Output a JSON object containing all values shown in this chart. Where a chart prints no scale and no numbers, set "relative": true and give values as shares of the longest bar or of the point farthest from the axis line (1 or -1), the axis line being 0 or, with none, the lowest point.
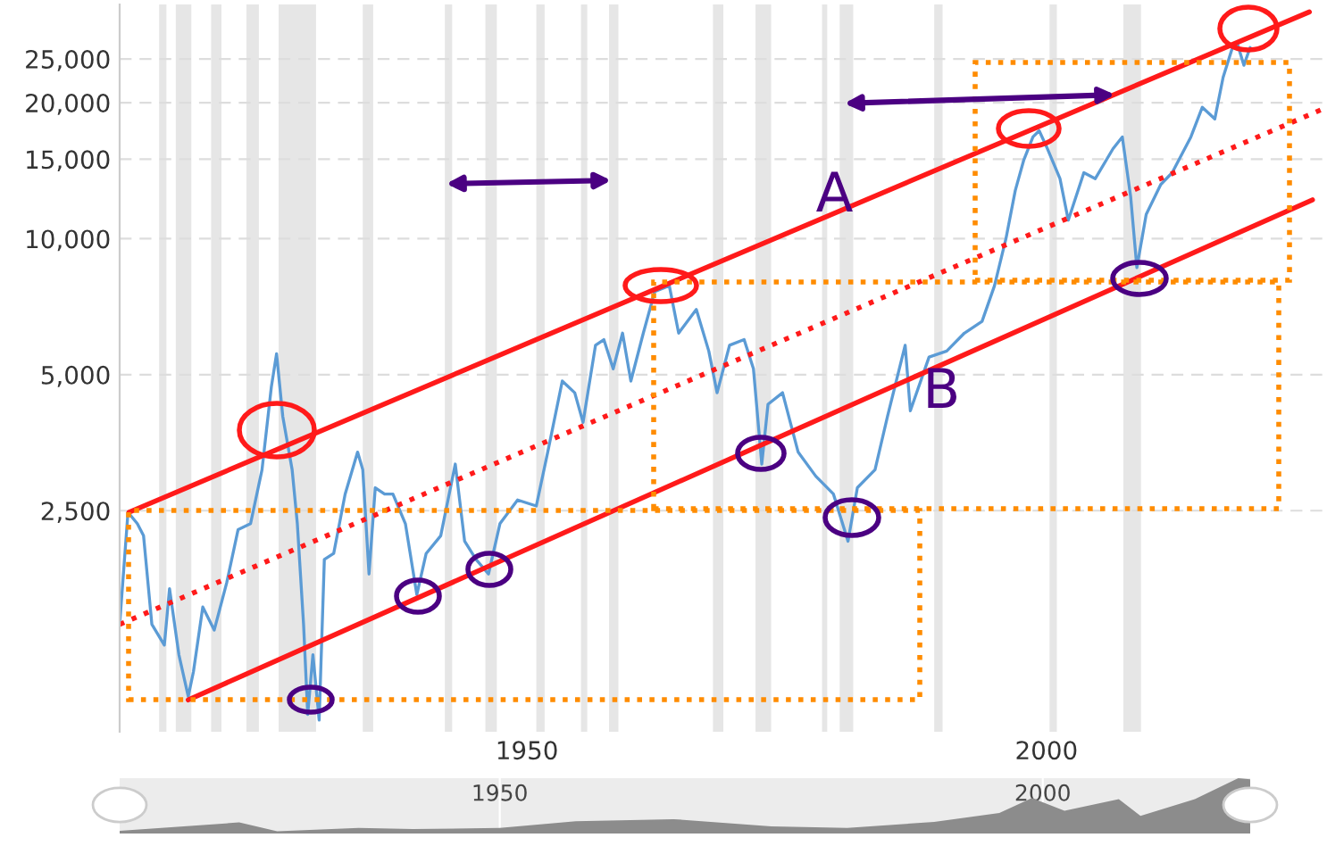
{
  "chart_data": [
    {
      "type": "line",
      "xlim": [
        1910.8,
        2027
      ],
      "ylim": [
        810,
        33000
      ],
      "log": "y",
      "grid": "y",
      "xticks": [
        1950,
        2000
      ],
      "yticks": [
        {
          "value": 2500,
          "label": "2,500"
        },
        {
          "value": 5000,
          "label": "5,000"
        },
        {
          "value": 10000,
          "label": "10,000"
        },
        {
          "value": 15000,
          "label": "15,000"
        },
        {
          "value": 20000,
          "label": "20,000"
        },
        {
          "value": 25000,
          "label": "25,000"
        }
      ],
      "bands": [
        {
          "axis": "x",
          "from": 1914.6,
          "to": 1915.3,
          "color": "#e6e6e6"
        },
        {
          "axis": "x",
          "from": 1916.2,
          "to": 1917.7,
          "color": "#e6e6e6"
        },
        {
          "axis": "x",
          "from": 1919.6,
          "to": 1920.6,
          "color": "#e6e6e6"
        },
        {
          "axis": "x",
          "from": 1923.0,
          "to": 1924.2,
          "color": "#e6e6e6"
        },
        {
          "axis": "x",
          "from": 1926.1,
          "to": 1929.7,
          "color": "#e6e6e6"
        },
        {
          "axis": "x",
          "from": 1934.2,
          "to": 1935.2,
          "color": "#e6e6e6"
        },
        {
          "axis": "x",
          "from": 1942.1,
          "to": 1942.8,
          "color": "#e6e6e6"
        },
        {
          "axis": "x",
          "from": 1946.0,
          "to": 1947.1,
          "color": "#e6e6e6"
        },
        {
          "axis": "x",
          "from": 1950.9,
          "to": 1951.7,
          "color": "#e6e6e6"
        },
        {
          "axis": "x",
          "from": 1955.2,
          "to": 1955.8,
          "color": "#e6e6e6"
        },
        {
          "axis": "x",
          "from": 1957.9,
          "to": 1958.8,
          "color": "#e6e6e6"
        },
        {
          "axis": "x",
          "from": 1967.9,
          "to": 1968.9,
          "color": "#e6e6e6"
        },
        {
          "axis": "x",
          "from": 1972.0,
          "to": 1973.5,
          "color": "#e6e6e6"
        },
        {
          "axis": "x",
          "from": 1978.4,
          "to": 1978.9,
          "color": "#e6e6e6"
        },
        {
          "axis": "x",
          "from": 1980.1,
          "to": 1981.4,
          "color": "#e6e6e6"
        },
        {
          "axis": "x",
          "from": 1989.2,
          "to": 1990.0,
          "color": "#e6e6e6"
        },
        {
          "axis": "x",
          "from": 2000.3,
          "to": 2001.0,
          "color": "#e6e6e6"
        },
        {
          "axis": "x",
          "from": 2007.4,
          "to": 2009.1,
          "color": "#e6e6e6"
        }
      ],
      "series": [
        {
          "type": "line",
          "color": "#5b9bd5",
          "line_style": "solid",
          "x": [
            1910.8,
            1911.6,
            1912.5,
            1913.1,
            1913.9,
            1915.1,
            1915.6,
            1916.5,
            1917.4,
            1917.9,
            1918.8,
            1919.9,
            1921.1,
            1922.2,
            1923.4,
            1924.5,
            1925.4,
            1925.9,
            1926.5,
            1927.4,
            1927.9,
            1928.5,
            1928.9,
            1929.4,
            1930.0,
            1930.5,
            1931.4,
            1932.5,
            1933.7,
            1934.2,
            1934.8,
            1935.4,
            1936.3,
            1937.1,
            1938.3,
            1939.4,
            1940.3,
            1941.7,
            1943.1,
            1944.0,
            1945.1,
            1946.3,
            1947.4,
            1949.1,
            1950.9,
            1952.0,
            1953.4,
            1954.6,
            1955.4,
            1956.6,
            1957.4,
            1958.3,
            1959.2,
            1960.0,
            1961.2,
            1962.3,
            1963.7,
            1964.6,
            1966.3,
            1967.5,
            1968.3,
            1969.5,
            1970.9,
            1971.8,
            1972.6,
            1973.2,
            1974.6,
            1976.1,
            1977.8,
            1979.5,
            1980.9,
            1981.8,
            1983.5,
            1984.7,
            1986.4,
            1986.9,
            1988.7,
            1990.4,
            1992.1,
            1993.8,
            1995.0,
            1996.1,
            1997.0,
            1997.8,
            1998.7,
            1999.3,
            2000.1,
            2001.3,
            2002.1,
            2003.6,
            2004.7,
            2006.4,
            2007.3,
            2008.1,
            2008.7,
            2009.6,
            2011.0,
            2012.1,
            2013.9,
            2015.0,
            2016.2,
            2017.0,
            2017.9,
            2018.4,
            2019.0,
            2019.6
          ],
          "values": [
            1400,
            2480,
            2340,
            2200,
            1400,
            1260,
            1680,
            1200,
            970,
            1100,
            1530,
            1360,
            1730,
            2270,
            2340,
            3080,
            4700,
            5560,
            4040,
            3080,
            2340,
            1400,
            885,
            1200,
            860,
            1950,
            2010,
            2720,
            3370,
            3080,
            1810,
            2810,
            2720,
            2720,
            2340,
            1630,
            2010,
            2200,
            3170,
            2140,
            1950,
            1810,
            2340,
            2640,
            2560,
            3370,
            4840,
            4560,
            3920,
            5810,
            5980,
            5150,
            6180,
            4840,
            6180,
            7640,
            7870,
            6180,
            6970,
            5640,
            4560,
            5810,
            5980,
            5150,
            3170,
            4300,
            4560,
            3370,
            2980,
            2720,
            2140,
            2810,
            3080,
            4040,
            5810,
            4160,
            5470,
            5640,
            6180,
            6560,
            7870,
            10000,
            12790,
            14890,
            16800,
            17340,
            15810,
            13580,
            10990,
            14000,
            13580,
            15810,
            16800,
            12410,
            8630,
            11320,
            13180,
            14000,
            16800,
            19540,
            18410,
            22750,
            26490,
            26900,
            24210,
            26490
          ]
        },
        {
          "type": "line",
          "color": "#ff1a1a",
          "line_style": "solid",
          "x": [
            1911.7,
            2025.3
          ],
          "values": [
            2480,
            31770
          ]
        },
        {
          "type": "line",
          "color": "#ff1a1a",
          "line_style": "solid",
          "x": [
            1917.4,
            2025.6
          ],
          "values": [
            953,
            12190
          ]
        },
        {
          "type": "line",
          "color": "#ff1a1a",
          "line_style": "dotted",
          "x": [
            1910.8,
            2027.0
          ],
          "values": [
            1400,
            19540
          ]
        }
      ],
      "annotations": [
        {
          "text": "A",
          "x": 1979.6,
          "y": 12400
        },
        {
          "text": "B",
          "x": 1989.9,
          "y": 4560
        }
      ]
    },
    {
      "type": "area",
      "relative": true,
      "xlim": [
        1915.0,
        2019.1
      ],
      "xticks": [
        1950,
        2000
      ],
      "tick_labels": "x",
      "grid": "x",
      "series": [
        {
          "color": "#8c8c8c",
          "x": [
            1915.0,
            1926.0,
            1929.5,
            1937.0,
            1942.0,
            1950.0,
            1957.0,
            1966.0,
            1975.0,
            1982.0,
            1990.0,
            1996.0,
            1999.0,
            2002.0,
            2007.0,
            2009.0,
            2014.0,
            2018.0,
            2019.1
          ],
          "values": [
            0.05,
            0.2,
            0.04,
            0.1,
            0.08,
            0.1,
            0.22,
            0.26,
            0.13,
            0.1,
            0.21,
            0.37,
            0.64,
            0.41,
            0.62,
            0.32,
            0.62,
            1.0,
            0.98
          ]
        }
      ]
    }
  ]
}
